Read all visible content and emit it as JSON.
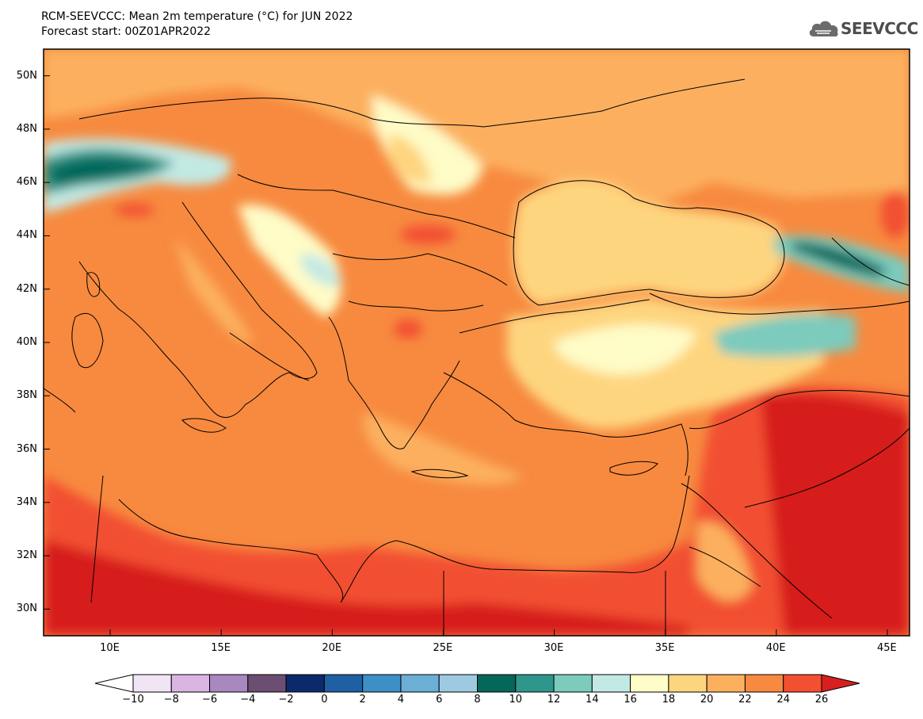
{
  "title": {
    "line1": "RCM-SEEVCCC: Mean 2m temperature (°C) for JUN 2022",
    "line2": "Forecast start: 00Z01APR2022"
  },
  "logo": {
    "text": "SEEVCCC",
    "icon": "cloud-icon"
  },
  "map": {
    "lon_range": [
      7,
      46
    ],
    "lat_range": [
      29,
      51
    ],
    "lat_ticks": [
      {
        "value": 50,
        "label": "50N"
      },
      {
        "value": 48,
        "label": "48N"
      },
      {
        "value": 46,
        "label": "46N"
      },
      {
        "value": 44,
        "label": "44N"
      },
      {
        "value": 42,
        "label": "42N"
      },
      {
        "value": 40,
        "label": "40N"
      },
      {
        "value": 38,
        "label": "38N"
      },
      {
        "value": 36,
        "label": "36N"
      },
      {
        "value": 34,
        "label": "34N"
      },
      {
        "value": 32,
        "label": "32N"
      },
      {
        "value": 30,
        "label": "30N"
      }
    ],
    "lon_ticks": [
      {
        "value": 10,
        "label": "10E"
      },
      {
        "value": 15,
        "label": "15E"
      },
      {
        "value": 20,
        "label": "20E"
      },
      {
        "value": 25,
        "label": "25E"
      },
      {
        "value": 30,
        "label": "30E"
      },
      {
        "value": 35,
        "label": "35E"
      },
      {
        "value": 40,
        "label": "40E"
      },
      {
        "value": 45,
        "label": "45E"
      }
    ]
  },
  "colorbar": {
    "labels": [
      "−10",
      "−8",
      "−6",
      "−4",
      "−2",
      "0",
      "2",
      "4",
      "6",
      "8",
      "10",
      "12",
      "14",
      "16",
      "18",
      "20",
      "22",
      "24",
      "26"
    ],
    "colors": [
      "#ffffff",
      "#f0e4f5",
      "#dab5e3",
      "#a987bf",
      "#6b4e72",
      "#0a2a6b",
      "#1f5fa3",
      "#3d8fc6",
      "#6baed6",
      "#9ecae1",
      "#05665a",
      "#2e968a",
      "#7ccbbd",
      "#c3e9e4",
      "#fefcc7",
      "#fed57f",
      "#fcb05e",
      "#f78a3f",
      "#f25030",
      "#d71f1f"
    ]
  }
}
